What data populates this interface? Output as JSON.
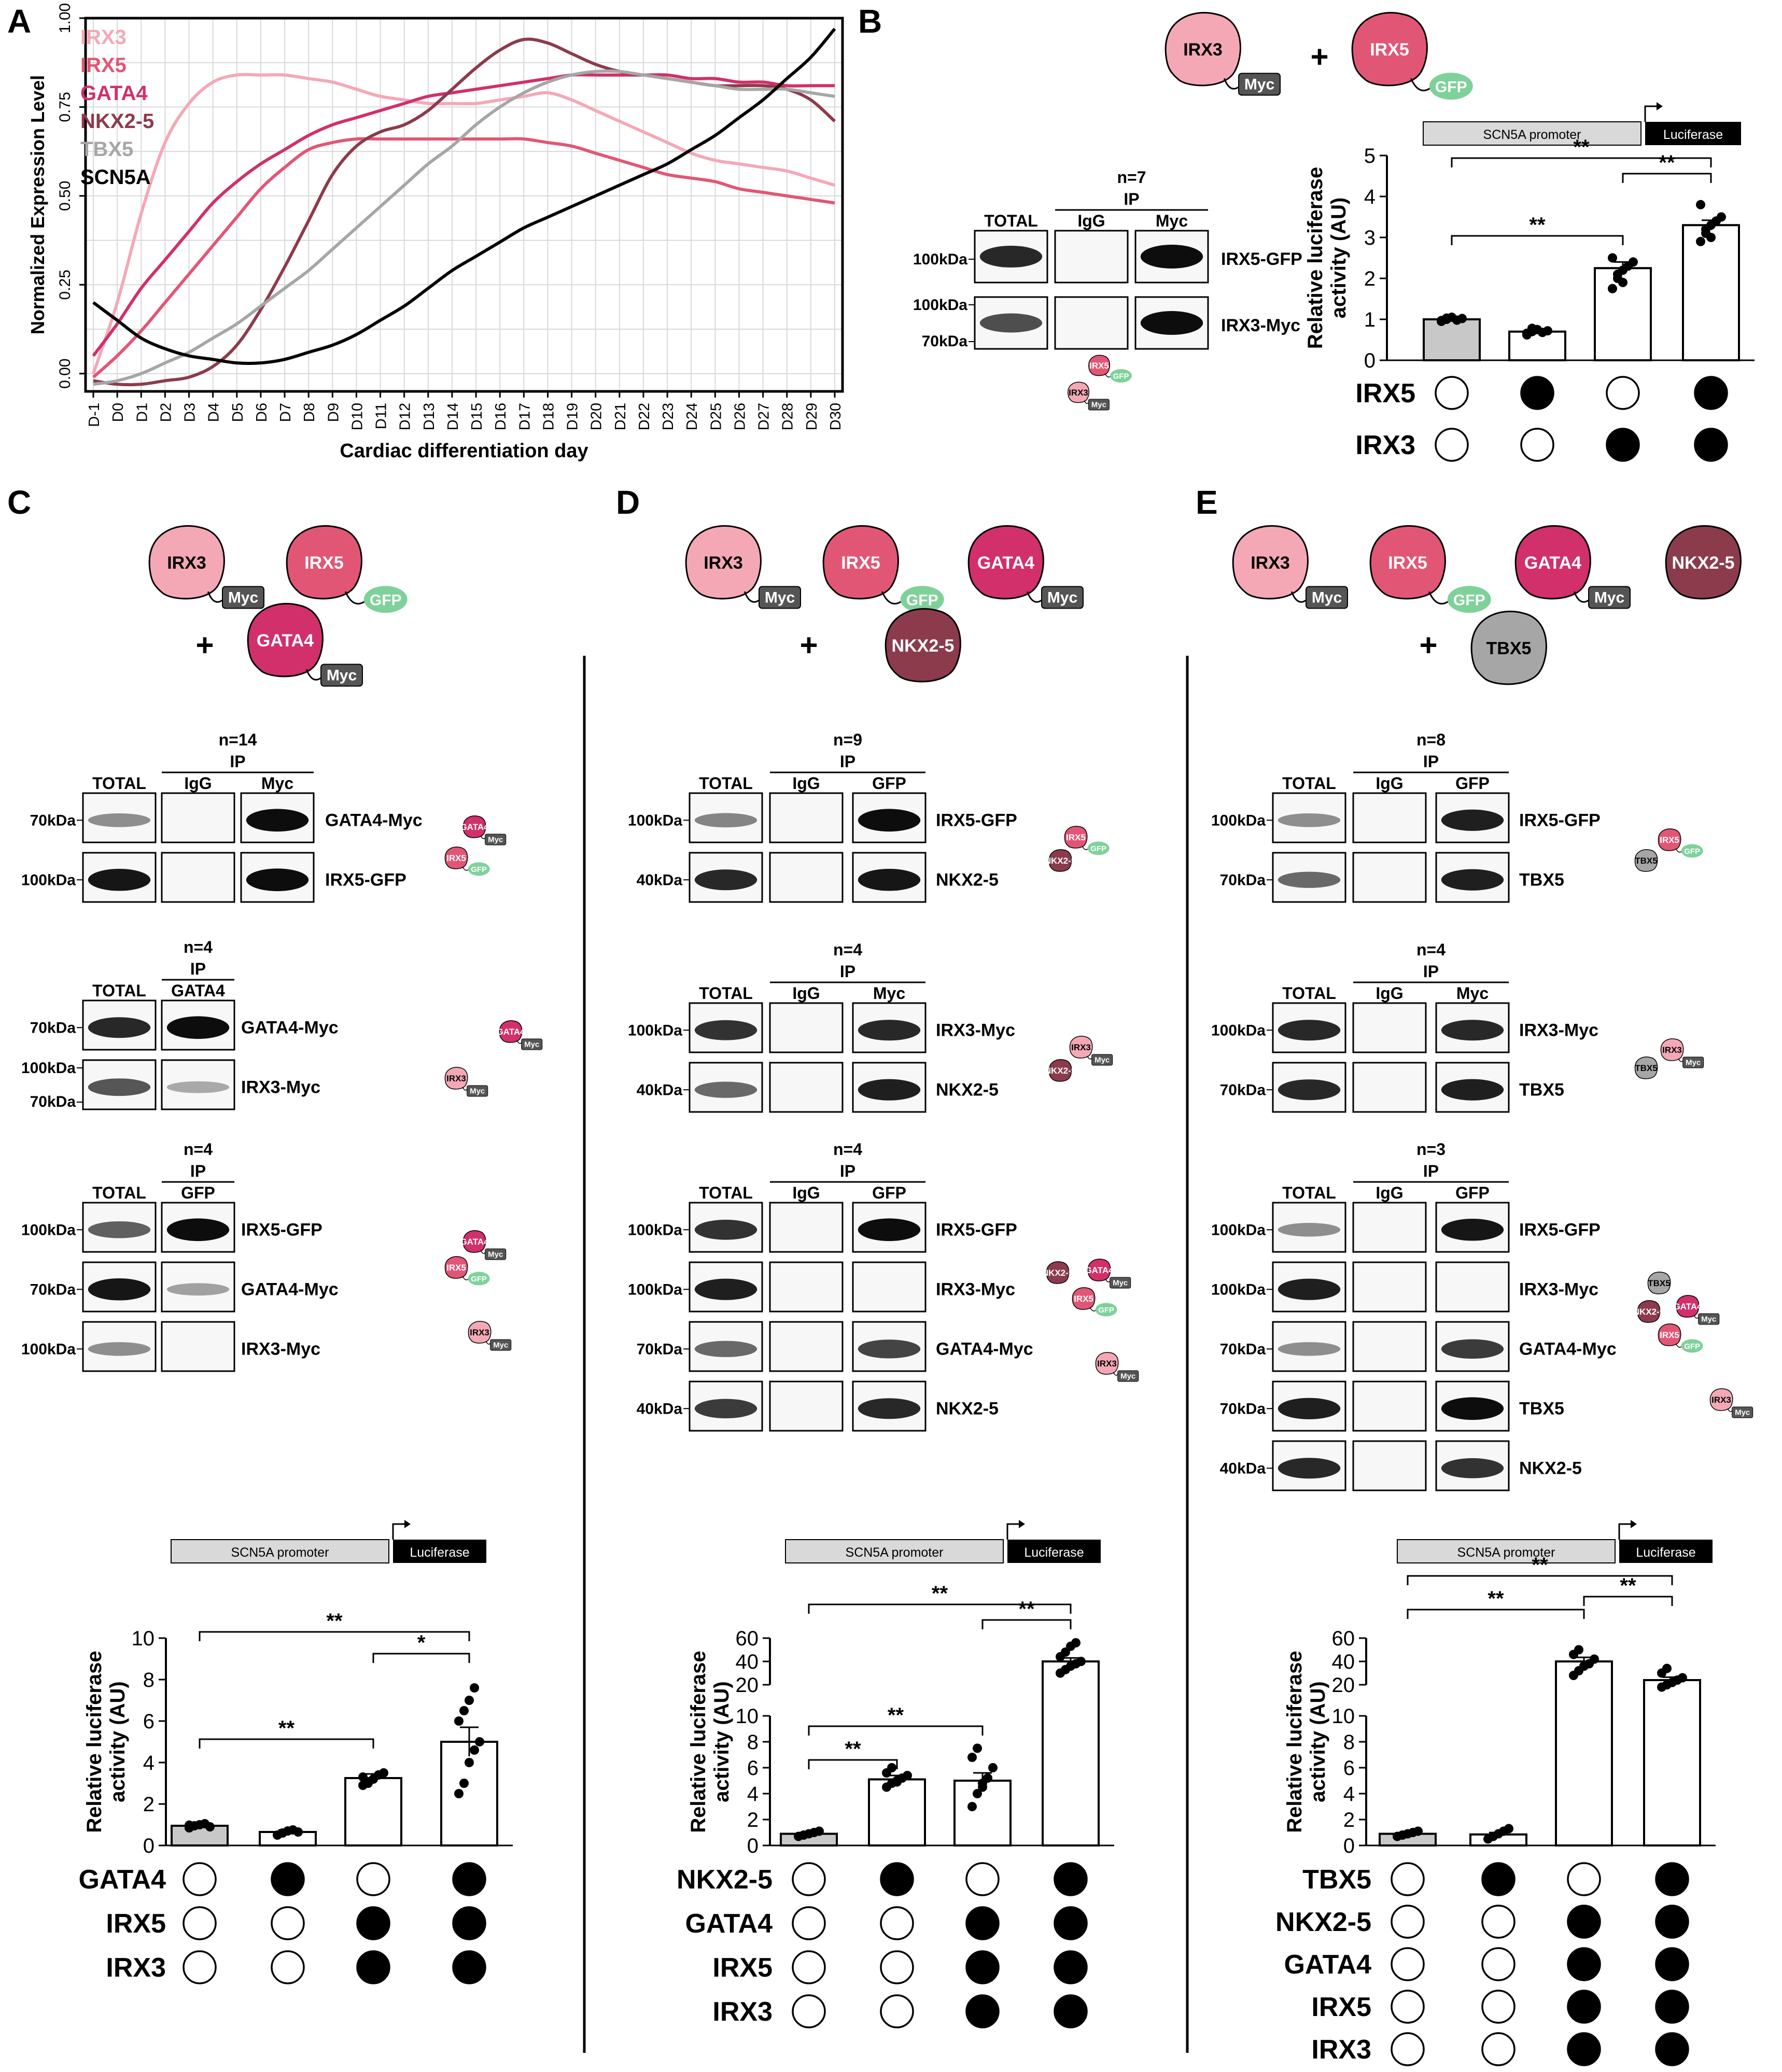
{
  "panels": {
    "A": "A",
    "B": "B",
    "C": "C",
    "D": "D",
    "E": "E"
  },
  "colors": {
    "IRX3": "#f4a8b6",
    "IRX5": "#e25675",
    "GATA4": "#d1306a",
    "NKX2-5": "#8c3b4c",
    "TBX5": "#a6a6a6",
    "SCN5A": "#000000",
    "myc_tag": "#555555",
    "gfp_tag": "#7fd19a",
    "promoter": "#d9d9d9",
    "ctrl_bar": "#c8c8c8"
  },
  "chart_data": [
    {
      "type": "line",
      "panel": "A",
      "ylabel": "Normalized Expression Level",
      "xlabel": "Cardiac differentiation day",
      "x": [
        "D-1",
        "D0",
        "D1",
        "D2",
        "D3",
        "D4",
        "D5",
        "D6",
        "D7",
        "D8",
        "D9",
        "D10",
        "D11",
        "D12",
        "D13",
        "D14",
        "D15",
        "D16",
        "D17",
        "D18",
        "D19",
        "D20",
        "D21",
        "D22",
        "D23",
        "D24",
        "D25",
        "D26",
        "D27",
        "D28",
        "D29",
        "D30"
      ],
      "yticks": [
        "0.00",
        "0.25",
        "0.50",
        "0.75",
        "1.00"
      ],
      "ylim": [
        -0.05,
        1.0
      ],
      "grid": true,
      "legend": "top-left",
      "series": [
        {
          "name": "IRX3",
          "values": [
            0.0,
            0.2,
            0.45,
            0.65,
            0.76,
            0.82,
            0.84,
            0.84,
            0.84,
            0.83,
            0.82,
            0.8,
            0.78,
            0.77,
            0.76,
            0.76,
            0.76,
            0.77,
            0.78,
            0.79,
            0.77,
            0.74,
            0.71,
            0.68,
            0.65,
            0.62,
            0.6,
            0.59,
            0.58,
            0.57,
            0.55,
            0.53
          ]
        },
        {
          "name": "IRX5",
          "values": [
            -0.01,
            0.05,
            0.12,
            0.2,
            0.28,
            0.36,
            0.44,
            0.52,
            0.58,
            0.63,
            0.65,
            0.66,
            0.66,
            0.66,
            0.66,
            0.66,
            0.66,
            0.66,
            0.66,
            0.65,
            0.64,
            0.62,
            0.6,
            0.58,
            0.56,
            0.55,
            0.54,
            0.52,
            0.51,
            0.5,
            0.49,
            0.48
          ]
        },
        {
          "name": "GATA4",
          "values": [
            0.05,
            0.14,
            0.24,
            0.32,
            0.4,
            0.48,
            0.54,
            0.59,
            0.63,
            0.67,
            0.7,
            0.72,
            0.74,
            0.76,
            0.78,
            0.79,
            0.8,
            0.81,
            0.82,
            0.83,
            0.84,
            0.84,
            0.84,
            0.84,
            0.84,
            0.83,
            0.83,
            0.82,
            0.82,
            0.81,
            0.81,
            0.81
          ]
        },
        {
          "name": "NKX2-5",
          "values": [
            -0.02,
            -0.03,
            -0.03,
            -0.02,
            -0.01,
            0.02,
            0.08,
            0.18,
            0.3,
            0.43,
            0.56,
            0.64,
            0.68,
            0.7,
            0.74,
            0.8,
            0.86,
            0.91,
            0.94,
            0.93,
            0.9,
            0.87,
            0.85,
            0.84,
            0.83,
            0.82,
            0.81,
            0.81,
            0.81,
            0.8,
            0.77,
            0.71
          ]
        },
        {
          "name": "TBX5",
          "values": [
            -0.03,
            -0.02,
            0.0,
            0.03,
            0.06,
            0.1,
            0.14,
            0.19,
            0.24,
            0.29,
            0.35,
            0.41,
            0.47,
            0.53,
            0.59,
            0.64,
            0.7,
            0.75,
            0.79,
            0.82,
            0.84,
            0.85,
            0.85,
            0.84,
            0.83,
            0.82,
            0.81,
            0.8,
            0.8,
            0.8,
            0.79,
            0.78
          ]
        },
        {
          "name": "SCN5A",
          "values": [
            0.2,
            0.15,
            0.1,
            0.07,
            0.05,
            0.04,
            0.03,
            0.03,
            0.04,
            0.06,
            0.08,
            0.11,
            0.15,
            0.19,
            0.24,
            0.29,
            0.33,
            0.37,
            0.41,
            0.44,
            0.47,
            0.5,
            0.53,
            0.56,
            0.59,
            0.63,
            0.67,
            0.72,
            0.77,
            0.83,
            0.89,
            0.97
          ]
        }
      ]
    },
    {
      "type": "bar",
      "panel": "B",
      "ylabel": "Relative luciferase activity (AU)",
      "yticks": [
        "0",
        "1",
        "2",
        "3",
        "4",
        "5"
      ],
      "ylim": [
        0,
        5
      ],
      "values": [
        1.0,
        0.7,
        2.25,
        3.3
      ],
      "errors": [
        0.05,
        0.05,
        0.15,
        0.12
      ],
      "points": [
        [
          0.95,
          1.0,
          1.05,
          0.98,
          1.02,
          0.97,
          1.03
        ],
        [
          0.62,
          0.7,
          0.75,
          0.68,
          0.72,
          0.66,
          0.78
        ],
        [
          1.75,
          2.0,
          2.2,
          2.3,
          2.4,
          2.5,
          2.1,
          1.9
        ],
        [
          2.9,
          3.1,
          3.3,
          3.4,
          3.5,
          3.8,
          3.2,
          3.0
        ]
      ],
      "sig": [
        {
          "from": 0,
          "to": 2,
          "label": "**"
        },
        {
          "from": 0,
          "to": 3,
          "label": "**"
        },
        {
          "from": 2,
          "to": 3,
          "label": "**"
        }
      ],
      "conditions": [
        {
          "label": "IRX5",
          "states": [
            0,
            1,
            0,
            1
          ]
        },
        {
          "label": "IRX3",
          "states": [
            0,
            0,
            1,
            1
          ]
        }
      ]
    },
    {
      "type": "bar",
      "panel": "C",
      "ylabel": "Relative luciferase activity (AU)",
      "yticks": [
        "0",
        "2",
        "4",
        "6",
        "8",
        "10"
      ],
      "ylim": [
        0,
        10
      ],
      "values": [
        0.95,
        0.65,
        3.25,
        5.0
      ],
      "errors": [
        0.05,
        0.1,
        0.2,
        0.7
      ],
      "points": [
        [
          0.85,
          0.95,
          1.0,
          1.05,
          0.9,
          0.98
        ],
        [
          0.5,
          0.6,
          0.7,
          0.75,
          0.65
        ],
        [
          2.9,
          3.0,
          3.2,
          3.4,
          3.5,
          3.3
        ],
        [
          2.5,
          3.0,
          4.0,
          4.6,
          5.0,
          6.0,
          6.5,
          7.0,
          7.6
        ]
      ],
      "sig": [
        {
          "from": 0,
          "to": 2,
          "label": "**"
        },
        {
          "from": 0,
          "to": 3,
          "label": "**"
        },
        {
          "from": 2,
          "to": 3,
          "label": "*"
        }
      ],
      "conditions": [
        {
          "label": "GATA4",
          "states": [
            0,
            1,
            0,
            1
          ]
        },
        {
          "label": "IRX5",
          "states": [
            0,
            0,
            1,
            1
          ]
        },
        {
          "label": "IRX3",
          "states": [
            0,
            0,
            1,
            1
          ]
        }
      ]
    },
    {
      "type": "bar",
      "panel": "D",
      "ylabel": "Relative luciferase activity (AU)",
      "yticks_low": [
        "0",
        "2",
        "4",
        "6",
        "8",
        "10"
      ],
      "yticks_high": [
        "20",
        "40",
        "60"
      ],
      "values": [
        0.9,
        5.1,
        5.0,
        40.0
      ],
      "errors": [
        0.1,
        0.3,
        0.6,
        3.0
      ],
      "points": [
        [
          0.7,
          0.8,
          0.9,
          1.0,
          1.1
        ],
        [
          4.5,
          4.8,
          5.0,
          5.2,
          5.4,
          5.6,
          6.0,
          4.9
        ],
        [
          3.0,
          4.0,
          4.8,
          5.2,
          6.0,
          6.8,
          7.5,
          4.5
        ],
        [
          30,
          33,
          36,
          38,
          40,
          44,
          48,
          53,
          56
        ]
      ],
      "sig": [
        {
          "from": 0,
          "to": 1,
          "label": "**"
        },
        {
          "from": 0,
          "to": 2,
          "label": "**"
        },
        {
          "from": 0,
          "to": 3,
          "label": "**"
        },
        {
          "from": 2,
          "to": 3,
          "label": "**"
        }
      ],
      "conditions": [
        {
          "label": "NKX2-5",
          "states": [
            0,
            1,
            0,
            1
          ]
        },
        {
          "label": "GATA4",
          "states": [
            0,
            0,
            1,
            1
          ]
        },
        {
          "label": "IRX5",
          "states": [
            0,
            0,
            1,
            1
          ]
        },
        {
          "label": "IRX3",
          "states": [
            0,
            0,
            1,
            1
          ]
        }
      ]
    },
    {
      "type": "bar",
      "panel": "E",
      "ylabel": "Relative luciferase activity (AU)",
      "yticks_low": [
        "0",
        "2",
        "4",
        "6",
        "8",
        "10"
      ],
      "yticks_high": [
        "20",
        "40",
        "60"
      ],
      "values": [
        0.9,
        0.85,
        40.0,
        24.0
      ],
      "errors": [
        0.1,
        0.15,
        3.5,
        2.5
      ],
      "points": [
        [
          0.7,
          0.8,
          0.9,
          1.0,
          1.1
        ],
        [
          0.5,
          0.7,
          0.9,
          1.1,
          1.3
        ],
        [
          28,
          32,
          36,
          38,
          42,
          46,
          50,
          36
        ],
        [
          18,
          20,
          22,
          24,
          26,
          30,
          34,
          22
        ]
      ],
      "sig": [
        {
          "from": 0,
          "to": 2,
          "label": "**"
        },
        {
          "from": 0,
          "to": 3,
          "label": "**"
        },
        {
          "from": 2,
          "to": 3,
          "label": "**"
        }
      ],
      "conditions": [
        {
          "label": "TBX5",
          "states": [
            0,
            1,
            0,
            1
          ]
        },
        {
          "label": "NKX2-5",
          "states": [
            0,
            0,
            1,
            1
          ]
        },
        {
          "label": "GATA4",
          "states": [
            0,
            0,
            1,
            1
          ]
        },
        {
          "label": "IRX5",
          "states": [
            0,
            0,
            1,
            1
          ]
        },
        {
          "label": "IRX3",
          "states": [
            0,
            0,
            1,
            1
          ]
        }
      ]
    }
  ],
  "construct": {
    "promoter_label": "SCN5A promoter",
    "reporter_label": "Luciferase"
  },
  "plus": "+",
  "panelB": {
    "n": "n=7",
    "ip": "IP",
    "cols": [
      "TOTAL",
      "IgG",
      "Myc"
    ],
    "rows": [
      {
        "marker": "100kDa",
        "label": "IRX5-GFP"
      },
      {
        "marker": "100kDa",
        "marker2": "70kDa",
        "label": "IRX3-Myc"
      }
    ]
  },
  "panelC": {
    "blots": [
      {
        "n": "n=14",
        "ip": "IP",
        "cols": [
          "TOTAL",
          "IgG",
          "Myc"
        ],
        "rows": [
          {
            "marker": "70kDa",
            "label": "GATA4-Myc"
          },
          {
            "marker": "100kDa",
            "label": "IRX5-GFP"
          }
        ]
      },
      {
        "n": "n=4",
        "ip": "IP",
        "cols": [
          "TOTAL",
          "GATA4"
        ],
        "rows": [
          {
            "marker": "70kDa",
            "label": "GATA4-Myc"
          },
          {
            "marker": "100kDa",
            "marker2": "70kDa",
            "label": "IRX3-Myc"
          }
        ]
      },
      {
        "n": "n=4",
        "ip": "IP",
        "cols": [
          "TOTAL",
          "GFP"
        ],
        "rows": [
          {
            "marker": "100kDa",
            "label": "IRX5-GFP"
          },
          {
            "marker": "70kDa",
            "label": "GATA4-Myc"
          },
          {
            "marker": "100kDa",
            "label": "IRX3-Myc"
          }
        ]
      }
    ]
  },
  "panelD": {
    "blots": [
      {
        "n": "n=9",
        "ip": "IP",
        "cols": [
          "TOTAL",
          "IgG",
          "GFP"
        ],
        "rows": [
          {
            "marker": "100kDa",
            "label": "IRX5-GFP"
          },
          {
            "marker": "40kDa",
            "label": "NKX2-5"
          }
        ]
      },
      {
        "n": "n=4",
        "ip": "IP",
        "cols": [
          "TOTAL",
          "IgG",
          "Myc"
        ],
        "rows": [
          {
            "marker": "100kDa",
            "label": "IRX3-Myc"
          },
          {
            "marker": "40kDa",
            "label": "NKX2-5"
          }
        ]
      },
      {
        "n": "n=4",
        "ip": "IP",
        "cols": [
          "TOTAL",
          "IgG",
          "GFP"
        ],
        "rows": [
          {
            "marker": "100kDa",
            "label": "IRX5-GFP"
          },
          {
            "marker": "100kDa",
            "label": "IRX3-Myc"
          },
          {
            "marker": "70kDa",
            "label": "GATA4-Myc"
          },
          {
            "marker": "40kDa",
            "label": "NKX2-5"
          }
        ]
      }
    ]
  },
  "panelE": {
    "blots": [
      {
        "n": "n=8",
        "ip": "IP",
        "cols": [
          "TOTAL",
          "IgG",
          "GFP"
        ],
        "rows": [
          {
            "marker": "100kDa",
            "label": "IRX5-GFP"
          },
          {
            "marker": "70kDa",
            "label": "TBX5"
          }
        ]
      },
      {
        "n": "n=4",
        "ip": "IP",
        "cols": [
          "TOTAL",
          "IgG",
          "Myc"
        ],
        "rows": [
          {
            "marker": "100kDa",
            "label": "IRX3-Myc"
          },
          {
            "marker": "70kDa",
            "label": "TBX5"
          }
        ]
      },
      {
        "n": "n=3",
        "ip": "IP",
        "cols": [
          "TOTAL",
          "IgG",
          "GFP"
        ],
        "rows": [
          {
            "marker": "100kDa",
            "label": "IRX5-GFP"
          },
          {
            "marker": "100kDa",
            "label": "IRX3-Myc"
          },
          {
            "marker": "70kDa",
            "label": "GATA4-Myc"
          },
          {
            "marker": "70kDa",
            "label": "TBX5"
          },
          {
            "marker": "40kDa",
            "label": "NKX2-5"
          }
        ]
      }
    ]
  },
  "proteins": {
    "IRX3": "IRX3",
    "IRX5": "IRX5",
    "GATA4": "GATA4",
    "NKX25": "NKX2-5",
    "TBX5": "TBX5",
    "Myc": "Myc",
    "GFP": "GFP"
  }
}
